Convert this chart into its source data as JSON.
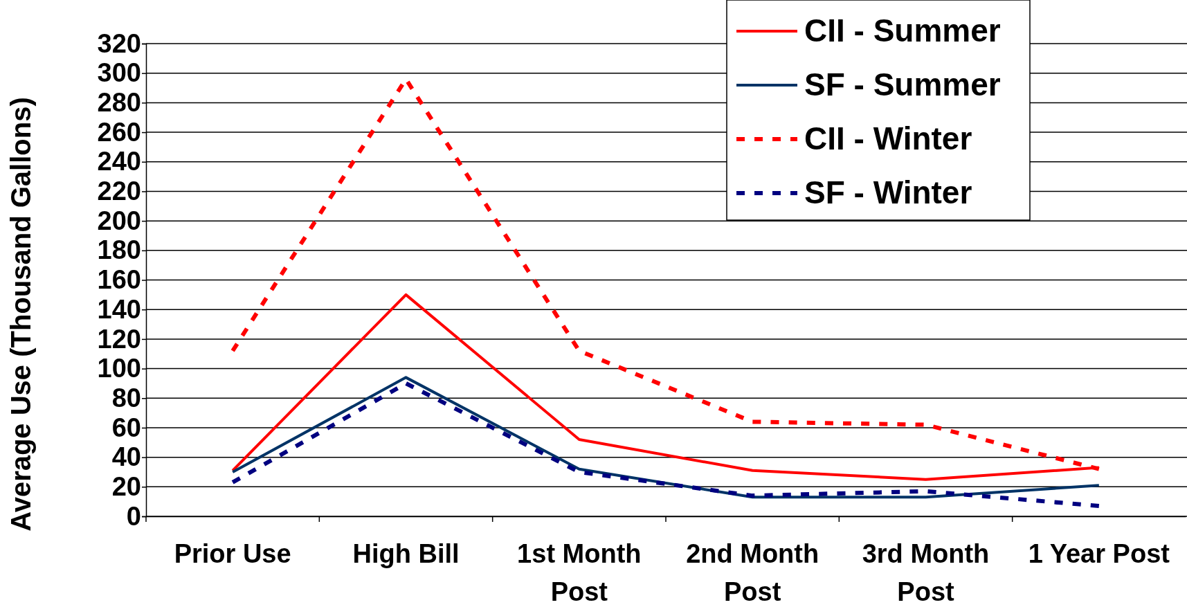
{
  "chart_data": {
    "type": "line",
    "ylabel": "Average Use (Thousand Gallons)",
    "categories": [
      "Prior Use",
      "High Bill",
      "1st Month Post",
      "2nd Month Post",
      "3rd Month Post",
      "1 Year Post"
    ],
    "series": [
      {
        "name": "CII - Summer",
        "color": "#ff0000",
        "line_style": "solid",
        "values": [
          31,
          150,
          52,
          31,
          25,
          33
        ]
      },
      {
        "name": "SF - Summer",
        "color": "#003366",
        "line_style": "solid",
        "values": [
          30,
          94,
          32,
          13,
          13,
          21
        ]
      },
      {
        "name": "CII - Winter",
        "color": "#ff0000",
        "line_style": "dashed",
        "values": [
          112,
          296,
          112,
          64,
          62,
          32
        ]
      },
      {
        "name": "SF - Winter",
        "color": "#000080",
        "line_style": "dashed",
        "values": [
          23,
          90,
          30,
          14,
          17,
          7
        ]
      }
    ],
    "ylim": [
      0,
      320
    ],
    "yticks": [
      0,
      20,
      40,
      60,
      80,
      100,
      120,
      140,
      160,
      180,
      200,
      220,
      240,
      260,
      280,
      300,
      320
    ],
    "grid": "y",
    "legend": "top right",
    "marker": "none"
  }
}
